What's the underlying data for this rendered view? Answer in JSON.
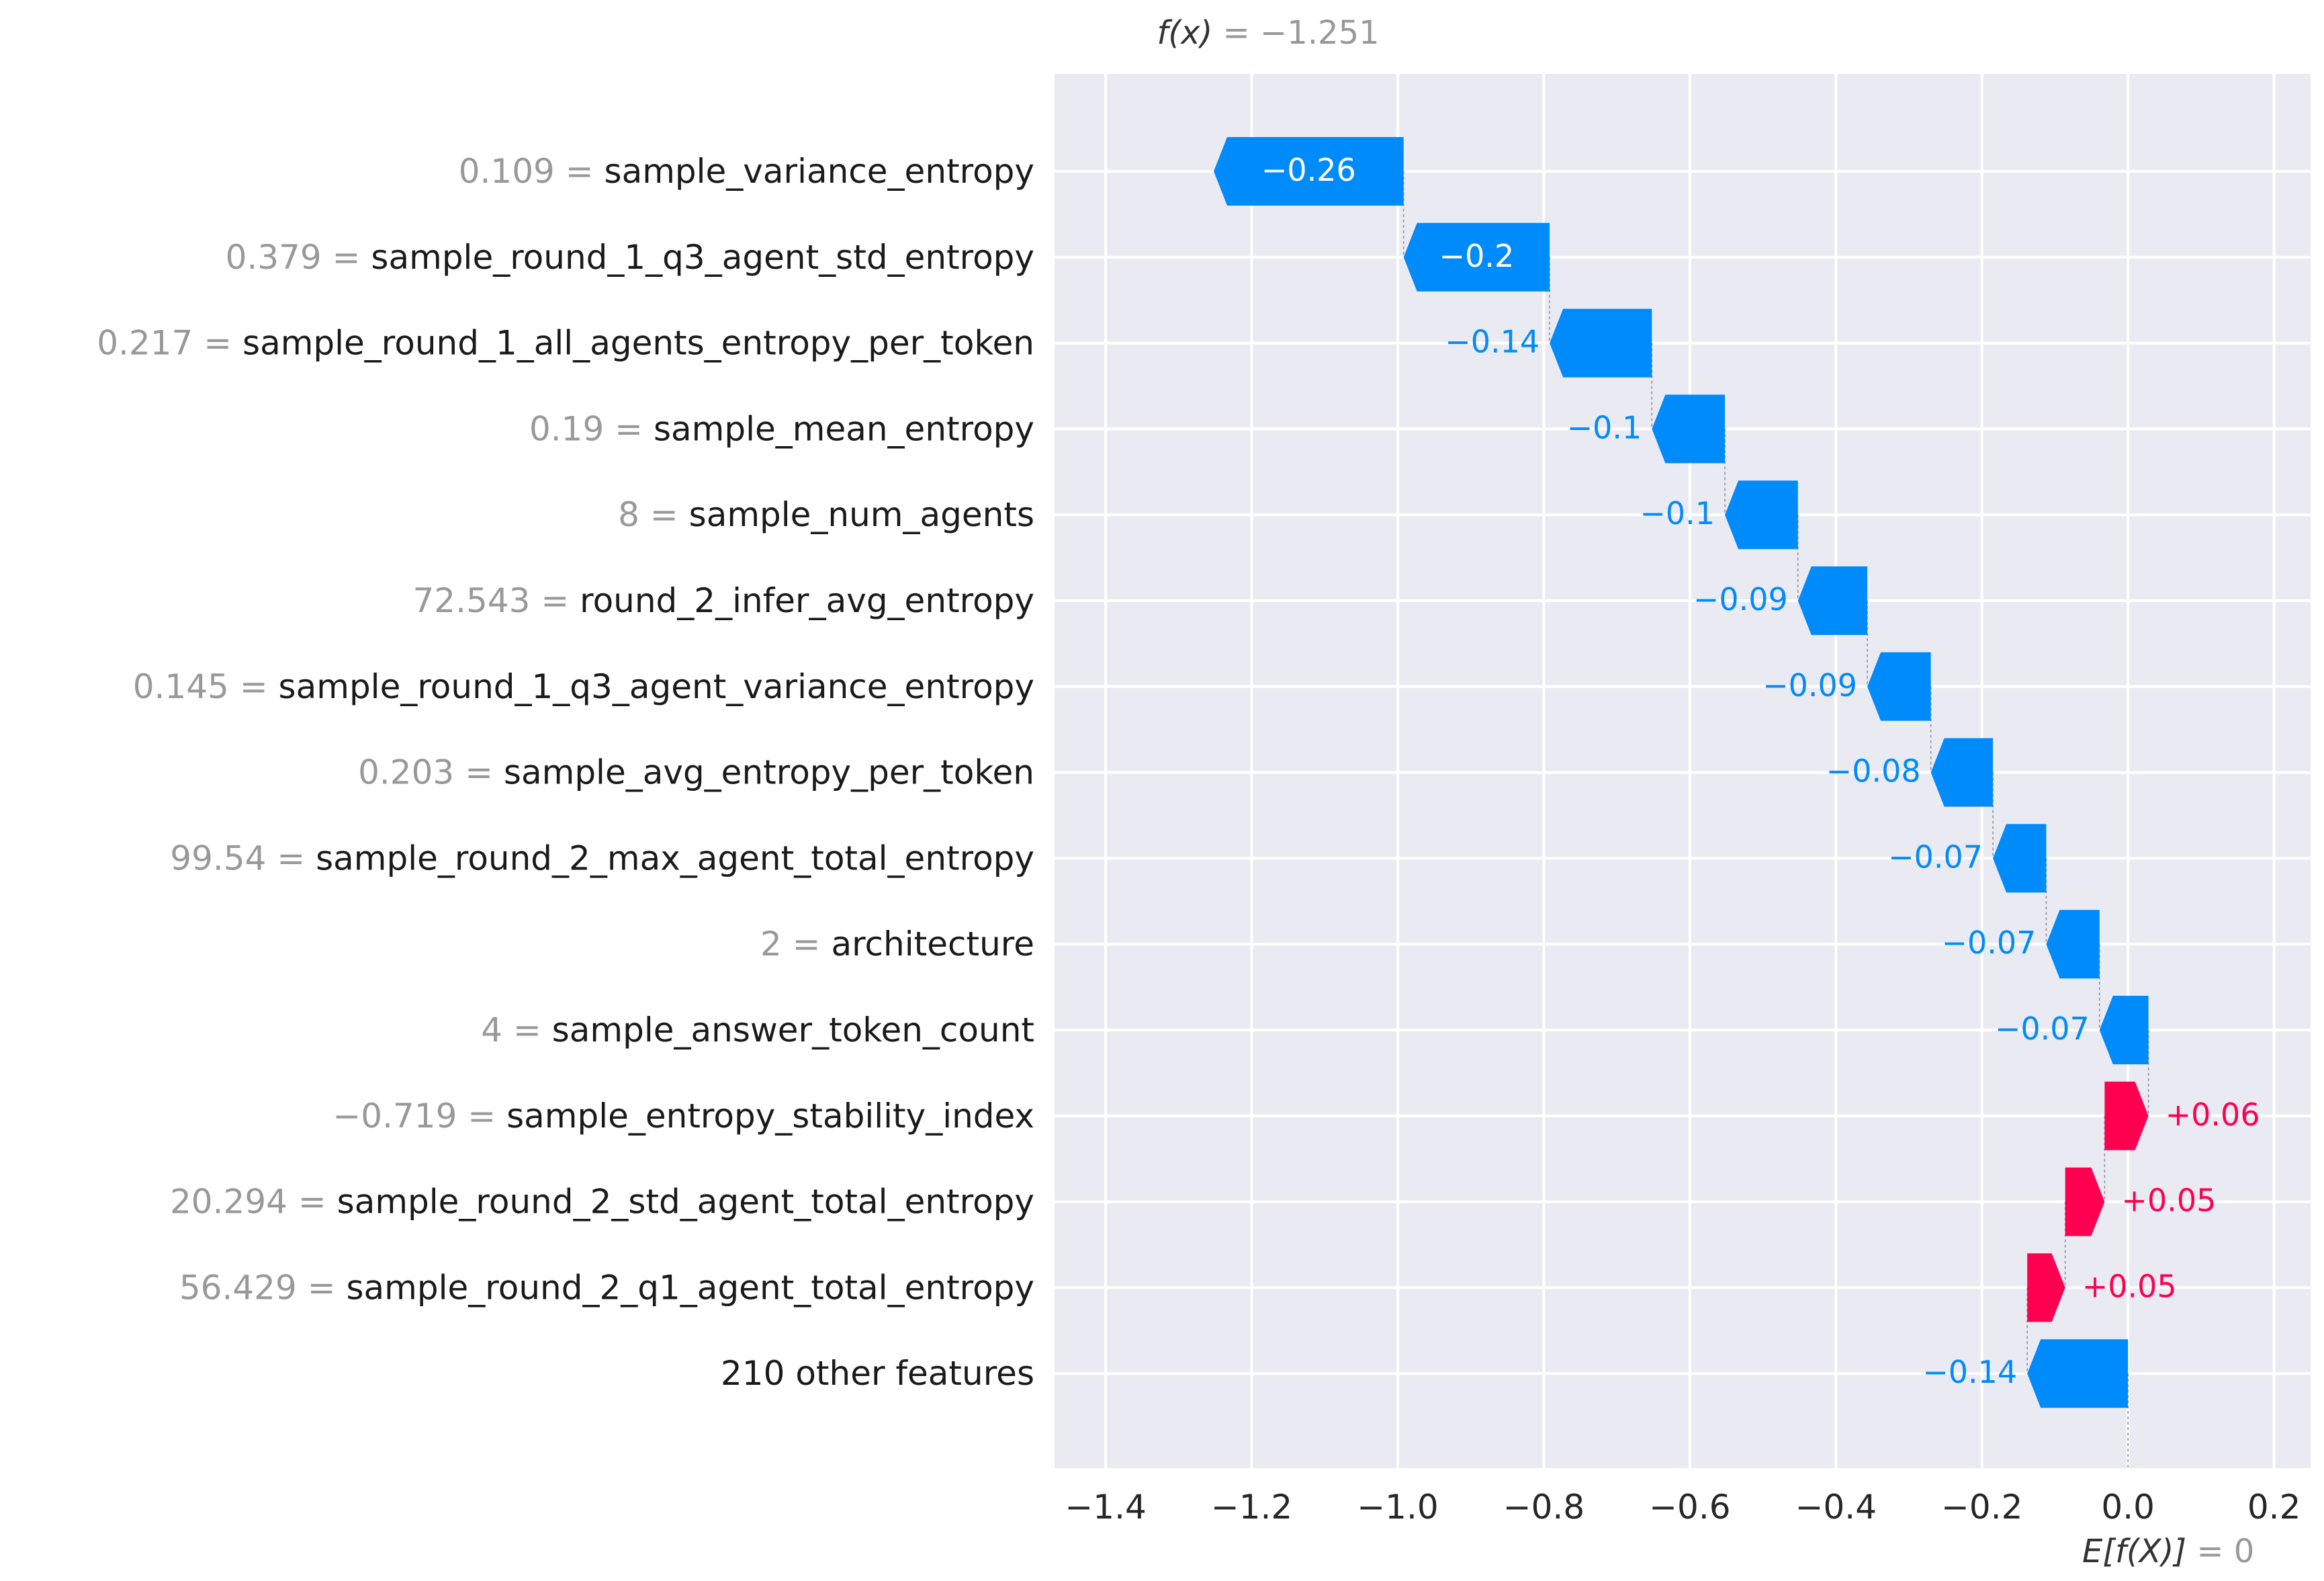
{
  "chart_data": {
    "type": "waterfall",
    "title": {
      "fx_symbol": "f(x)",
      "fx_value": "−1.251",
      "ex_symbol": "E[f(X)]",
      "ex_value": "0"
    },
    "base_value": 0,
    "final_value": -1.251,
    "xlim": [
      -1.47,
      0.25
    ],
    "ticks": [
      -1.4,
      -1.2,
      -1.0,
      -0.8,
      -0.6,
      -0.4,
      -0.2,
      0.0,
      0.2
    ],
    "tick_labels": [
      "−1.4",
      "−1.2",
      "−1.0",
      "−0.8",
      "−0.6",
      "−0.4",
      "−0.2",
      "0.0",
      "0.2"
    ],
    "features": [
      {
        "value": "0.109",
        "name": "sample_variance_entropy",
        "contribution": -0.26,
        "label": "−0.26"
      },
      {
        "value": "0.379",
        "name": "sample_round_1_q3_agent_std_entropy",
        "contribution": -0.2,
        "label": "−0.2"
      },
      {
        "value": "0.217",
        "name": "sample_round_1_all_agents_entropy_per_token",
        "contribution": -0.14,
        "label": "−0.14"
      },
      {
        "value": "0.19",
        "name": "sample_mean_entropy",
        "contribution": -0.1,
        "label": "−0.1"
      },
      {
        "value": "8",
        "name": "sample_num_agents",
        "contribution": -0.1,
        "label": "−0.1"
      },
      {
        "value": "72.543",
        "name": "round_2_infer_avg_entropy",
        "contribution": -0.095,
        "label": "−0.09"
      },
      {
        "value": "0.145",
        "name": "sample_round_1_q3_agent_variance_entropy",
        "contribution": -0.087,
        "label": "−0.09"
      },
      {
        "value": "0.203",
        "name": "sample_avg_entropy_per_token",
        "contribution": -0.085,
        "label": "−0.08"
      },
      {
        "value": "99.54",
        "name": "sample_round_2_max_agent_total_entropy",
        "contribution": -0.073,
        "label": "−0.07"
      },
      {
        "value": "2",
        "name": "architecture",
        "contribution": -0.073,
        "label": "−0.07"
      },
      {
        "value": "4",
        "name": "sample_answer_token_count",
        "contribution": -0.067,
        "label": "−0.07"
      },
      {
        "value": "−0.719",
        "name": "sample_entropy_stability_index",
        "contribution": 0.06,
        "label": "+0.06"
      },
      {
        "value": "20.294",
        "name": "sample_round_2_std_agent_total_entropy",
        "contribution": 0.054,
        "label": "+0.05"
      },
      {
        "value": "56.429",
        "name": "sample_round_2_q1_agent_total_entropy",
        "contribution": 0.052,
        "label": "+0.05"
      },
      {
        "value": "",
        "name": "210 other features",
        "contribution": -0.138,
        "label": "−0.14"
      }
    ],
    "colors": {
      "negative": "#008bfb",
      "positive": "#ff0051",
      "background": "#eaeaf2",
      "grid": "#ffffff",
      "value_text": "#999999",
      "name_text": "#1a1a1a",
      "tick_text": "#262626"
    }
  }
}
